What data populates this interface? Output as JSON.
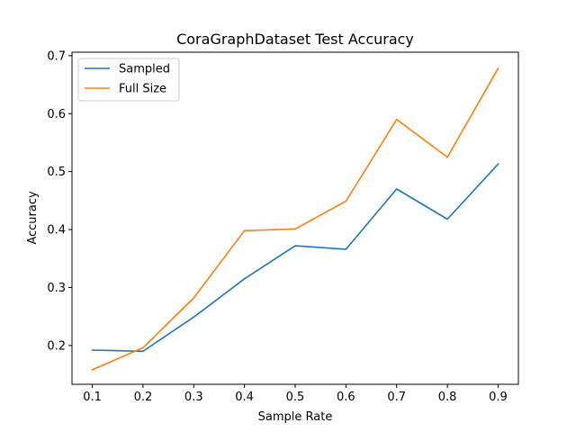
{
  "chart_data": {
    "type": "line",
    "title": "CoraGraphDataset Test Accuracy",
    "xlabel": "Sample Rate",
    "ylabel": "Accuracy",
    "x": [
      0.1,
      0.2,
      0.3,
      0.4,
      0.5,
      0.6,
      0.7,
      0.8,
      0.9
    ],
    "xticks": [
      "0.1",
      "0.2",
      "0.3",
      "0.4",
      "0.5",
      "0.6",
      "0.7",
      "0.8",
      "0.9"
    ],
    "yticks": [
      "0.2",
      "0.3",
      "0.4",
      "0.5",
      "0.6",
      "0.7"
    ],
    "xlim": [
      0.06,
      0.94
    ],
    "ylim": [
      0.133,
      0.706
    ],
    "legend_position": "upper-left",
    "grid": false,
    "series": [
      {
        "name": "Sampled",
        "color": "#1f77b4",
        "values": [
          0.192,
          0.19,
          0.249,
          0.315,
          0.372,
          0.366,
          0.47,
          0.418,
          0.513
        ]
      },
      {
        "name": "Full Size",
        "color": "#ff7f0e",
        "values": [
          0.158,
          0.196,
          0.282,
          0.398,
          0.401,
          0.449,
          0.59,
          0.525,
          0.678
        ]
      }
    ]
  }
}
